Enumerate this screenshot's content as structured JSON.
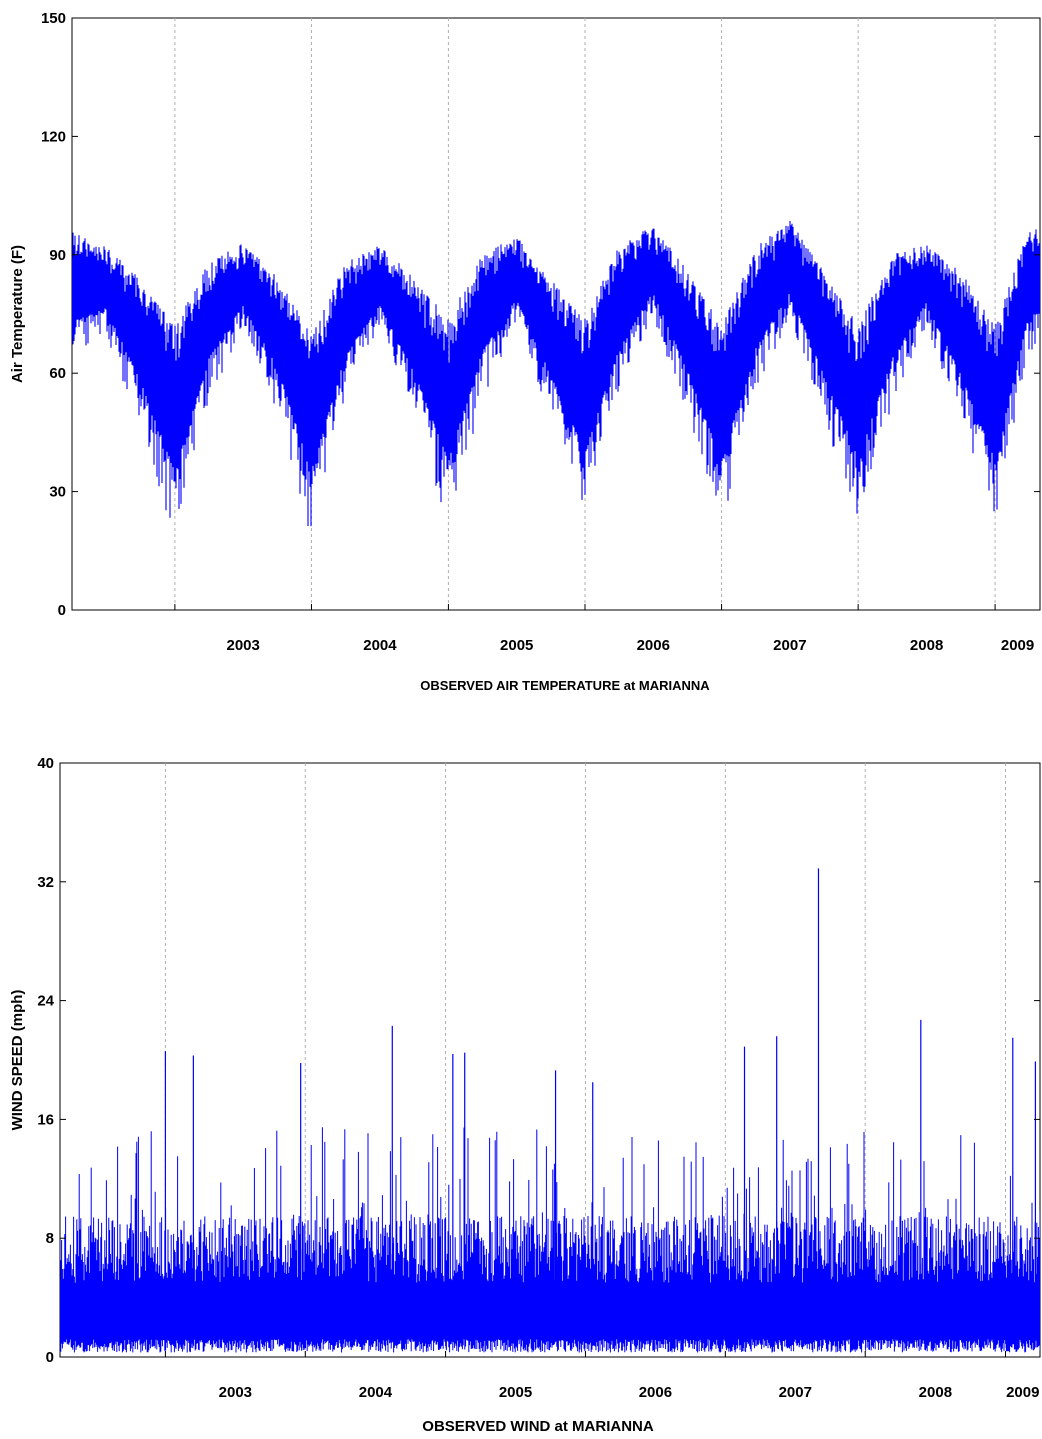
{
  "chart_data": [
    {
      "type": "line",
      "title": "",
      "xlabel": "OBSERVED AIR TEMPERATURE at MARIANNA",
      "ylabel": "Air Temperature (F)",
      "ylim": [
        0,
        150
      ],
      "yticks": [
        "0",
        "30",
        "60",
        "90",
        "120",
        "150"
      ],
      "xlim": [
        "2002-04-01",
        "2009-05-01"
      ],
      "xticks": [
        "2003",
        "2004",
        "2005",
        "2006",
        "2007",
        "2008",
        "2009"
      ],
      "x_gridlines": [
        "2003-01-01",
        "2004-01-01",
        "2005-01-01",
        "2006-01-01",
        "2007-01-01",
        "2008-01-01",
        "2009-01-01"
      ],
      "grid": "vertical dashed at year boundaries",
      "series_color": "#0000ff",
      "seasonal_envelope": {
        "x": [
          "2002-04",
          "2002-07",
          "2002-10",
          "2003-01",
          "2003-04",
          "2003-07",
          "2003-10",
          "2004-01",
          "2004-04",
          "2004-07",
          "2004-10",
          "2005-01",
          "2005-04",
          "2005-07",
          "2005-10",
          "2006-01",
          "2006-04",
          "2006-07",
          "2006-10",
          "2007-01",
          "2007-04",
          "2007-07",
          "2007-10",
          "2008-01",
          "2008-04",
          "2008-07",
          "2008-10",
          "2009-01",
          "2009-04"
        ],
        "max": [
          96,
          92,
          84,
          72,
          88,
          93,
          85,
          70,
          88,
          93,
          84,
          74,
          90,
          95,
          84,
          74,
          92,
          98,
          86,
          72,
          92,
          99,
          86,
          72,
          90,
          93,
          86,
          72,
          97
        ],
        "min": [
          64,
          70,
          45,
          17,
          52,
          72,
          50,
          17,
          55,
          72,
          50,
          21,
          53,
          73,
          48,
          25,
          55,
          74,
          50,
          21,
          55,
          74,
          48,
          23,
          52,
          72,
          48,
          21,
          66
        ],
        "typical": [
          78,
          80,
          65,
          45,
          70,
          80,
          68,
          45,
          70,
          80,
          66,
          47,
          72,
          82,
          66,
          48,
          72,
          84,
          67,
          47,
          72,
          84,
          66,
          47,
          70,
          81,
          66,
          47,
          80
        ]
      }
    },
    {
      "type": "line",
      "title": "",
      "xlabel": "OBSERVED WIND at MARIANNA",
      "ylabel": "WIND SPEED (mph)",
      "ylim": [
        0,
        40
      ],
      "yticks": [
        "0",
        "8",
        "16",
        "24",
        "32",
        "40"
      ],
      "xlim": [
        "2002-04-01",
        "2009-04-01"
      ],
      "xticks": [
        "2003",
        "2004",
        "2005",
        "2006",
        "2007",
        "2008",
        "2009"
      ],
      "x_gridlines": [
        "2003-01-01",
        "2004-01-01",
        "2005-01-01",
        "2006-01-01",
        "2007-01-01",
        "2008-01-01",
        "2009-01-01"
      ],
      "grid": "vertical dashed at year boundaries",
      "series_color": "#0000ff",
      "typical_range": [
        0.3,
        10
      ],
      "peaks": [
        {
          "x": "2003-01-01",
          "y": 20.6
        },
        {
          "x": "2003-03-15",
          "y": 20.3
        },
        {
          "x": "2003-12-20",
          "y": 19.8
        },
        {
          "x": "2004-08-15",
          "y": 22.3
        },
        {
          "x": "2005-01-20",
          "y": 20.4
        },
        {
          "x": "2005-02-20",
          "y": 20.5
        },
        {
          "x": "2005-10-15",
          "y": 19.3
        },
        {
          "x": "2006-01-20",
          "y": 18.5
        },
        {
          "x": "2007-02-20",
          "y": 20.9
        },
        {
          "x": "2007-05-15",
          "y": 21.6
        },
        {
          "x": "2007-09-01",
          "y": 32.9
        },
        {
          "x": "2008-05-25",
          "y": 22.7
        },
        {
          "x": "2009-01-20",
          "y": 21.5
        },
        {
          "x": "2009-03-20",
          "y": 19.9
        }
      ]
    }
  ]
}
